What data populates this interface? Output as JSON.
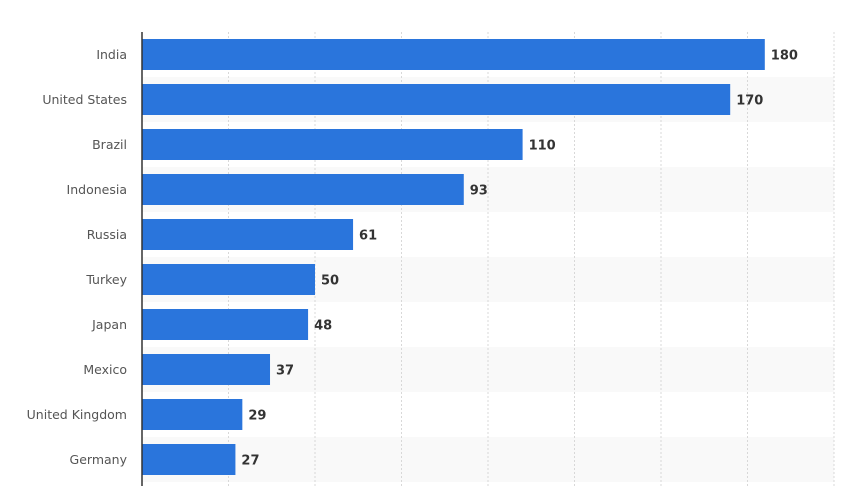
{
  "chart_data": {
    "type": "bar",
    "orientation": "horizontal",
    "categories": [
      "India",
      "United States",
      "Brazil",
      "Indonesia",
      "Russia",
      "Turkey",
      "Japan",
      "Mexico",
      "United Kingdom",
      "Germany"
    ],
    "values": [
      180,
      170,
      110,
      93,
      61,
      50,
      48,
      37,
      29,
      27
    ],
    "xlim": [
      0,
      200
    ],
    "grid": true,
    "bar_color": "#2a75dc",
    "band_color": "#f9f9f9"
  }
}
